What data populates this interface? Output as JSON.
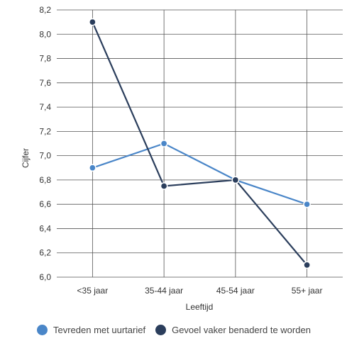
{
  "chart_data": {
    "type": "line",
    "categories": [
      "<35 jaar",
      "35-44 jaar",
      "45-54 jaar",
      "55+ jaar"
    ],
    "series": [
      {
        "name": "Tevreden met uurtarief",
        "values": [
          6.9,
          7.1,
          6.8,
          6.6
        ],
        "color": "#4a86c8"
      },
      {
        "name": "Gevoel vaker benaderd te worden",
        "values": [
          8.1,
          6.75,
          6.8,
          6.1
        ],
        "color": "#2b3e5c"
      }
    ],
    "xlabel": "Leeftijd",
    "ylabel": "Cijfer",
    "ylim": [
      6.0,
      8.2
    ],
    "yticks": [
      "8,2",
      "8,0",
      "7,8",
      "7,6",
      "7,4",
      "7,2",
      "7,0",
      "6,8",
      "6,6",
      "6,4",
      "6,2",
      "6,0"
    ],
    "grid": true,
    "legend_position": "bottom"
  }
}
